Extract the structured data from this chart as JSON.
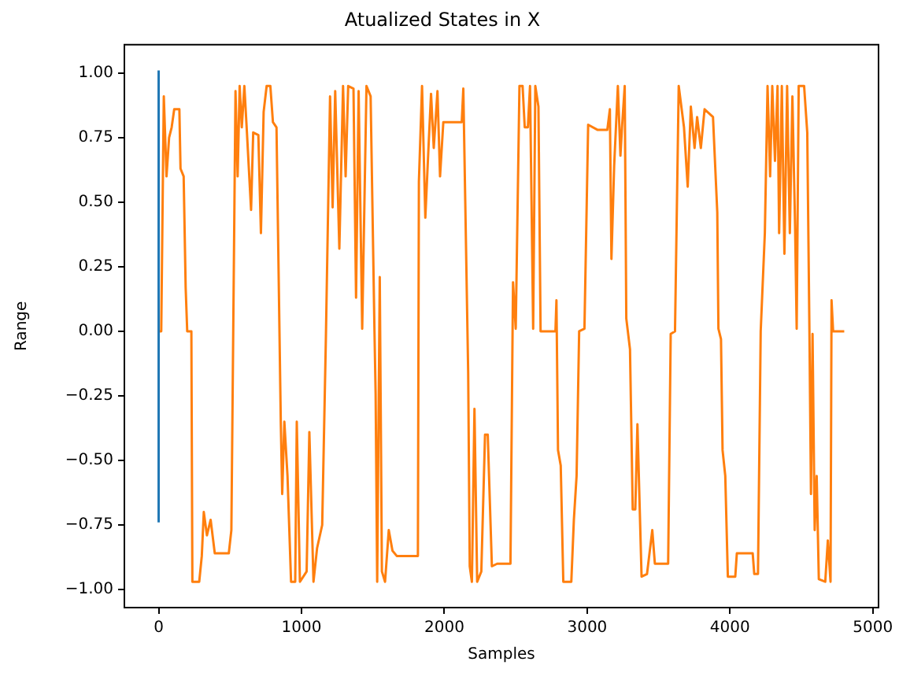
{
  "chart_data": {
    "type": "line",
    "title": "Atualized States in X",
    "xlabel": "Samples",
    "ylabel": "Range",
    "xlim": [
      -240,
      5040
    ],
    "xticks": [
      0,
      1000,
      2000,
      3000,
      4000,
      5000
    ],
    "ylim": [
      -1.07,
      1.11
    ],
    "yticks": [
      {
        "value": -1,
        "label": "−1.00"
      },
      {
        "value": -0.75,
        "label": "−0.75"
      },
      {
        "value": -0.5,
        "label": "−0.50"
      },
      {
        "value": -0.25,
        "label": "−0.25"
      },
      {
        "value": 0,
        "label": "0.00"
      },
      {
        "value": 0.25,
        "label": "0.25"
      },
      {
        "value": 0.5,
        "label": "0.50"
      },
      {
        "value": 0.75,
        "label": "0.75"
      },
      {
        "value": 1,
        "label": "1.00"
      }
    ],
    "grid": false,
    "legend": false,
    "marker": "none",
    "line_style": "solid",
    "series": [
      {
        "color": "#1f77b4",
        "x": [
          0,
          0
        ],
        "values": [
          -0.74,
          1.01
        ]
      },
      {
        "color": "#ff7f0e",
        "x": [
          0,
          18,
          36,
          55,
          73,
          91,
          109,
          145,
          153,
          175,
          189,
          200,
          229,
          236,
          255,
          284,
          302,
          316,
          338,
          364,
          393,
          491,
          509,
          538,
          553,
          567,
          582,
          600,
          618,
          647,
          662,
          698,
          716,
          735,
          756,
          782,
          800,
          825,
          855,
          865,
          880,
          902,
          927,
          956,
          967,
          989,
          1036,
          1055,
          1084,
          1109,
          1145,
          1171,
          1200,
          1218,
          1236,
          1265,
          1291,
          1309,
          1327,
          1364,
          1382,
          1400,
          1425,
          1455,
          1484,
          1489,
          1511,
          1519,
          1530,
          1548,
          1563,
          1585,
          1611,
          1637,
          1667,
          1815,
          1822,
          1844,
          1867,
          1889,
          1907,
          1926,
          1952,
          1970,
          1993,
          2037,
          2122,
          2133,
          2167,
          2178,
          2193,
          2211,
          2230,
          2259,
          2285,
          2304,
          2333,
          2370,
          2463,
          2481,
          2500,
          2526,
          2548,
          2563,
          2585,
          2600,
          2622,
          2637,
          2659,
          2674,
          2778,
          2785,
          2796,
          2815,
          2833,
          2889,
          2907,
          2926,
          2944,
          2981,
          3007,
          3074,
          3141,
          3159,
          3170,
          3189,
          3215,
          3233,
          3244,
          3263,
          3274,
          3300,
          3319,
          3337,
          3352,
          3381,
          3419,
          3456,
          3474,
          3567,
          3585,
          3615,
          3641,
          3678,
          3704,
          3726,
          3752,
          3770,
          3796,
          3822,
          3881,
          3911,
          3919,
          3937,
          3948,
          3967,
          3985,
          4037,
          4048,
          4159,
          4170,
          4196,
          4215,
          4244,
          4263,
          4281,
          4296,
          4315,
          4333,
          4344,
          4363,
          4381,
          4400,
          4419,
          4437,
          4456,
          4467,
          4481,
          4519,
          4541,
          4556,
          4567,
          4578,
          4593,
          4607,
          4622,
          4667,
          4685,
          4704,
          4711,
          4722,
          4800
        ],
        "values": [
          0,
          0,
          0.91,
          0.6,
          0.75,
          0.79,
          0.86,
          0.86,
          0.63,
          0.6,
          0.17,
          0,
          0,
          -0.97,
          -0.97,
          -0.97,
          -0.87,
          -0.7,
          -0.79,
          -0.73,
          -0.86,
          -0.86,
          -0.77,
          0.93,
          0.6,
          0.95,
          0.79,
          0.95,
          0.77,
          0.47,
          0.77,
          0.76,
          0.38,
          0.85,
          0.95,
          0.95,
          0.81,
          0.79,
          -0.35,
          -0.63,
          -0.35,
          -0.56,
          -0.97,
          -0.97,
          -0.35,
          -0.97,
          -0.93,
          -0.39,
          -0.97,
          -0.84,
          -0.75,
          -0.02,
          0.91,
          0.48,
          0.93,
          0.32,
          0.95,
          0.6,
          0.95,
          0.94,
          0.13,
          0.93,
          0.01,
          0.95,
          0.91,
          0.91,
          0,
          -0.24,
          -0.97,
          0.21,
          -0.93,
          -0.97,
          -0.77,
          -0.85,
          -0.87,
          -0.87,
          0.58,
          0.95,
          0.44,
          0.71,
          0.92,
          0.71,
          0.93,
          0.6,
          0.81,
          0.81,
          0.81,
          0.94,
          -0.16,
          -0.91,
          -0.97,
          -0.3,
          -0.97,
          -0.93,
          -0.4,
          -0.4,
          -0.91,
          -0.9,
          -0.9,
          0.19,
          0.01,
          0.95,
          0.95,
          0.79,
          0.79,
          0.95,
          0.01,
          0.95,
          0.87,
          0,
          0,
          0.12,
          -0.46,
          -0.52,
          -0.97,
          -0.97,
          -0.73,
          -0.56,
          0,
          0.01,
          0.8,
          0.78,
          0.78,
          0.86,
          0.28,
          0.64,
          0.95,
          0.68,
          0.79,
          0.95,
          0.05,
          -0.07,
          -0.69,
          -0.69,
          -0.36,
          -0.95,
          -0.94,
          -0.77,
          -0.9,
          -0.9,
          -0.01,
          0,
          0.95,
          0.79,
          0.56,
          0.87,
          0.71,
          0.83,
          0.71,
          0.86,
          0.83,
          0.46,
          0.01,
          -0.03,
          -0.46,
          -0.56,
          -0.95,
          -0.95,
          -0.86,
          -0.86,
          -0.94,
          -0.94,
          0,
          0.38,
          0.95,
          0.6,
          0.95,
          0.66,
          0.95,
          0.38,
          0.95,
          0.3,
          0.95,
          0.38,
          0.91,
          0.4,
          0.01,
          0.95,
          0.95,
          0.77,
          0.01,
          -0.63,
          -0.01,
          -0.77,
          -0.56,
          -0.96,
          -0.97,
          -0.81,
          -0.97,
          0.12,
          0,
          0
        ]
      }
    ]
  }
}
